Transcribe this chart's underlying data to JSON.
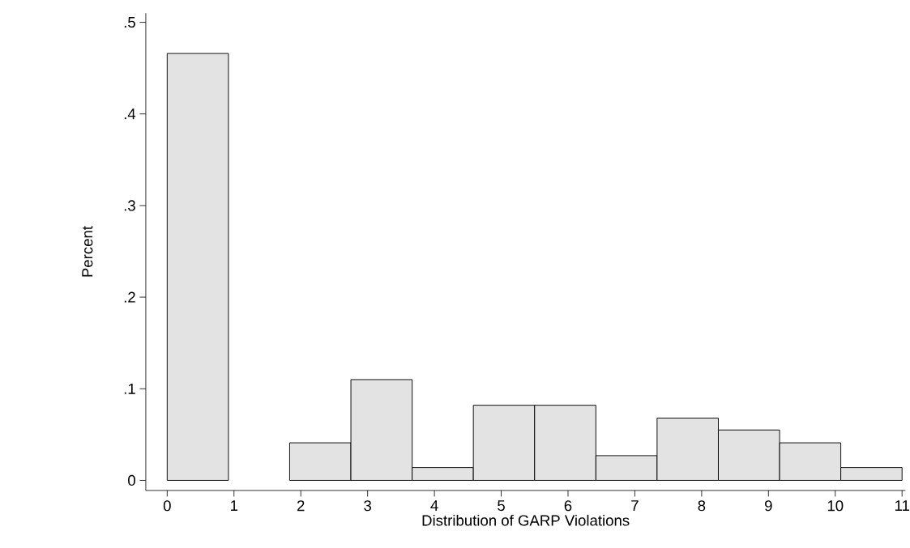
{
  "chart_data": {
    "type": "histogram",
    "xlabel": "Distribution of GARP Violations",
    "ylabel": "Percent",
    "bins": [
      0,
      0.917,
      1.833,
      2.75,
      3.667,
      4.583,
      5.5,
      6.417,
      7.333,
      8.25,
      9.167,
      10.083,
      11
    ],
    "values": [
      0.466,
      0,
      0.041,
      0.11,
      0.014,
      0.082,
      0.082,
      0.027,
      0.068,
      0.055,
      0.041,
      0.014
    ],
    "color": "#e3e3e3",
    "xlim": [
      -0.32,
      11.05
    ],
    "ylim": [
      -0.011,
      0.51
    ],
    "xticks": [
      0,
      1,
      2,
      3,
      4,
      5,
      6,
      7,
      8,
      9,
      10,
      11
    ],
    "yticks": [
      0,
      {
        "value": 0.1,
        "label": ".1"
      },
      {
        "value": 0.2,
        "label": ".2"
      },
      {
        "value": 0.3,
        "label": ".3"
      },
      {
        "value": 0.4,
        "label": ".4"
      },
      {
        "value": 0.5,
        "label": ".5"
      }
    ],
    "grid": false
  }
}
